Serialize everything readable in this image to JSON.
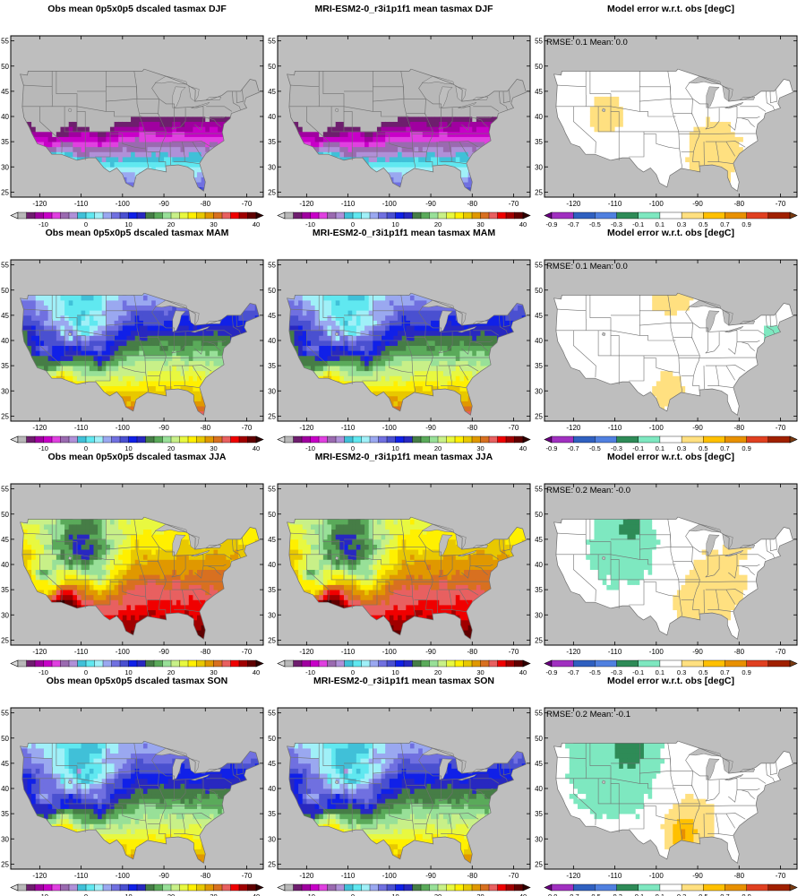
{
  "panels": [
    {
      "row": 0,
      "col": 0,
      "kind": "climate",
      "title": "Obs mean 0p5x0p5 dscaled tasmax DJF",
      "season": "DJF",
      "stats": ""
    },
    {
      "row": 0,
      "col": 1,
      "kind": "climate",
      "title": "MRI-ESM2-0_r3i1p1f1 mean tasmax DJF",
      "season": "DJF",
      "stats": ""
    },
    {
      "row": 0,
      "col": 2,
      "kind": "error",
      "title": "Model error w.r.t. obs [degC]",
      "season": "DJF",
      "stats": "RMSE: 0.1   Mean: 0.0"
    },
    {
      "row": 1,
      "col": 0,
      "kind": "climate",
      "title": "Obs mean 0p5x0p5 dscaled tasmax MAM",
      "season": "MAM",
      "stats": ""
    },
    {
      "row": 1,
      "col": 1,
      "kind": "climate",
      "title": "MRI-ESM2-0_r3i1p1f1 mean tasmax MAM",
      "season": "MAM",
      "stats": ""
    },
    {
      "row": 1,
      "col": 2,
      "kind": "error",
      "title": "Model error w.r.t. obs [degC]",
      "season": "MAM",
      "stats": "RMSE: 0.1   Mean: 0.0"
    },
    {
      "row": 2,
      "col": 0,
      "kind": "climate",
      "title": "Obs mean 0p5x0p5 dscaled tasmax JJA",
      "season": "JJA",
      "stats": ""
    },
    {
      "row": 2,
      "col": 1,
      "kind": "climate",
      "title": "MRI-ESM2-0_r3i1p1f1 mean tasmax JJA",
      "season": "JJA",
      "stats": ""
    },
    {
      "row": 2,
      "col": 2,
      "kind": "error",
      "title": "Model error w.r.t. obs [degC]",
      "season": "JJA",
      "stats": "RMSE: 0.2   Mean: -0.0"
    },
    {
      "row": 3,
      "col": 0,
      "kind": "climate",
      "title": "Obs mean 0p5x0p5 dscaled tasmax SON",
      "season": "SON",
      "stats": ""
    },
    {
      "row": 3,
      "col": 1,
      "kind": "climate",
      "title": "MRI-ESM2-0_r3i1p1f1 mean tasmax SON",
      "season": "SON",
      "stats": ""
    },
    {
      "row": 3,
      "col": 2,
      "kind": "error",
      "title": "Model error w.r.t. obs [degC]",
      "season": "SON",
      "stats": "RMSE: 0.2   Mean: -0.1"
    }
  ],
  "axes": {
    "lon_range": [
      -127,
      -66
    ],
    "lat_range": [
      24,
      56
    ],
    "x_ticks": [
      -120,
      -110,
      -100,
      -90,
      -80,
      -70
    ],
    "x_tick_labels": [
      "-120",
      "-110",
      "-100",
      "-90",
      "-80",
      "-70"
    ],
    "y_ticks": [
      25,
      30,
      35,
      40,
      45,
      50,
      55
    ],
    "y_tick_labels": [
      "25",
      "30",
      "35",
      "40",
      "45",
      "50",
      "55"
    ]
  },
  "climate_colorbar": {
    "levels": [
      -16,
      -14,
      -12,
      -10,
      -8,
      -6,
      -4,
      -2,
      0,
      2,
      4,
      6,
      8,
      10,
      12,
      14,
      16,
      18,
      20,
      22,
      24,
      26,
      28,
      30,
      32,
      34,
      36,
      38,
      40
    ],
    "labeled_levels": [
      "-10",
      "0",
      "10",
      "20",
      "30",
      "40"
    ],
    "colors": [
      "#dddddd",
      "#b8b8b8",
      "#6e1e6e",
      "#a000a0",
      "#c800c8",
      "#e040e0",
      "#9a6ab0",
      "#b090d8",
      "#40c0d8",
      "#60e8f0",
      "#a0f0f8",
      "#9aa8f0",
      "#7070e0",
      "#4a50d0",
      "#1020e8",
      "#2828c0",
      "#467d46",
      "#5aaa5a",
      "#98e098",
      "#c8f088",
      "#e8f840",
      "#fff000",
      "#e8c800",
      "#e09800",
      "#d87020",
      "#e86060",
      "#f00000",
      "#a00000",
      "#600000",
      "#300000"
    ]
  },
  "error_colorbar": {
    "levels": [
      -0.9,
      -0.7,
      -0.5,
      -0.3,
      -0.1,
      0.1,
      0.3,
      0.5,
      0.7,
      0.9
    ],
    "labeled_levels": [
      "-0.9",
      "-0.7",
      "-0.5",
      "-0.3",
      "-0.1",
      "0.1",
      "0.3",
      "0.5",
      "0.7",
      "0.9"
    ],
    "colors": [
      "#6a0080",
      "#a030c0",
      "#3060c0",
      "#5080e0",
      "#2e8b57",
      "#7ee8c0",
      "#ffffff",
      "#ffe080",
      "#ffc000",
      "#e89000",
      "#e04020",
      "#a02000",
      "#7a3a10"
    ]
  },
  "colors": {
    "ocean": "#bebebe",
    "lake": "#bebebe",
    "border": "#707070",
    "frame": "#000000"
  }
}
